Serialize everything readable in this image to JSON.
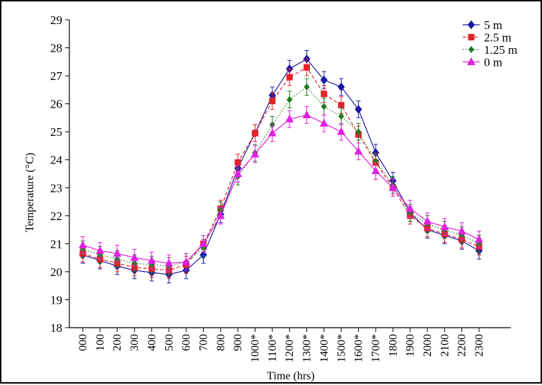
{
  "chart_data": {
    "type": "line",
    "title": "",
    "xlabel": "Time (hrs)",
    "ylabel": "Temperature (°C)",
    "ylim": [
      18,
      29
    ],
    "yticks": [
      18,
      19,
      20,
      21,
      22,
      23,
      24,
      25,
      26,
      27,
      28,
      29
    ],
    "grid": false,
    "legend_position": "top-right",
    "categories": [
      "000",
      "100",
      "200",
      "300",
      "400",
      "500",
      "600",
      "700",
      "800",
      "900",
      "1000*",
      "1100*",
      "1200*",
      "1300*",
      "1400*",
      "1500*",
      "1600*",
      "1700*",
      "1800",
      "1900",
      "2000",
      "2100",
      "2200",
      "2300"
    ],
    "series": [
      {
        "name": "5 m",
        "color": "#1a1aa6",
        "marker": "diamond",
        "line_style": "solid",
        "values": [
          20.6,
          20.4,
          20.2,
          20.05,
          19.97,
          19.9,
          20.05,
          20.6,
          22.05,
          23.7,
          24.95,
          26.3,
          27.25,
          27.6,
          26.85,
          26.6,
          25.8,
          24.25,
          23.25,
          22.1,
          21.5,
          21.3,
          21.1,
          20.75
        ],
        "errors": [
          0.3,
          0.3,
          0.3,
          0.3,
          0.3,
          0.3,
          0.3,
          0.3,
          0.3,
          0.3,
          0.3,
          0.3,
          0.3,
          0.3,
          0.3,
          0.3,
          0.3,
          0.3,
          0.3,
          0.3,
          0.3,
          0.3,
          0.3,
          0.3
        ]
      },
      {
        "name": "2.5 m",
        "color": "#e3242b",
        "marker": "square",
        "line_style": "dashed",
        "values": [
          20.65,
          20.45,
          20.3,
          20.15,
          20.1,
          20.05,
          20.25,
          21.0,
          22.25,
          23.9,
          24.95,
          26.1,
          26.95,
          27.3,
          26.35,
          25.95,
          24.9,
          23.9,
          23.0,
          22.0,
          21.55,
          21.35,
          21.15,
          20.9
        ],
        "errors": [
          0.3,
          0.3,
          0.3,
          0.3,
          0.3,
          0.3,
          0.3,
          0.3,
          0.3,
          0.3,
          0.3,
          0.3,
          0.3,
          0.3,
          0.3,
          0.3,
          0.3,
          0.3,
          0.3,
          0.3,
          0.3,
          0.3,
          0.3,
          0.3
        ]
      },
      {
        "name": "1.25 m",
        "color": "#1f7a1f",
        "marker": "diamond-small",
        "line_style": "dotted",
        "values": [
          20.8,
          20.6,
          20.45,
          20.3,
          20.25,
          20.2,
          20.35,
          20.85,
          22.2,
          23.4,
          24.25,
          25.25,
          26.15,
          26.6,
          25.9,
          25.55,
          25.0,
          23.95,
          23.1,
          22.1,
          21.7,
          21.5,
          21.3,
          21.0
        ],
        "errors": [
          0.3,
          0.3,
          0.3,
          0.3,
          0.3,
          0.3,
          0.3,
          0.3,
          0.3,
          0.3,
          0.3,
          0.3,
          0.3,
          0.3,
          0.3,
          0.3,
          0.3,
          0.3,
          0.3,
          0.3,
          0.3,
          0.3,
          0.3,
          0.3
        ]
      },
      {
        "name": "0 m",
        "color": "#e020e0",
        "marker": "triangle",
        "line_style": "solid",
        "values": [
          20.95,
          20.75,
          20.65,
          20.5,
          20.4,
          20.3,
          20.35,
          21.0,
          22.0,
          23.5,
          24.2,
          24.95,
          25.45,
          25.6,
          25.3,
          25.0,
          24.3,
          23.6,
          23.0,
          22.25,
          21.8,
          21.6,
          21.45,
          21.15
        ],
        "errors": [
          0.3,
          0.3,
          0.3,
          0.3,
          0.3,
          0.3,
          0.3,
          0.3,
          0.3,
          0.3,
          0.3,
          0.3,
          0.3,
          0.3,
          0.3,
          0.3,
          0.3,
          0.3,
          0.3,
          0.3,
          0.3,
          0.3,
          0.3,
          0.3
        ]
      }
    ]
  }
}
